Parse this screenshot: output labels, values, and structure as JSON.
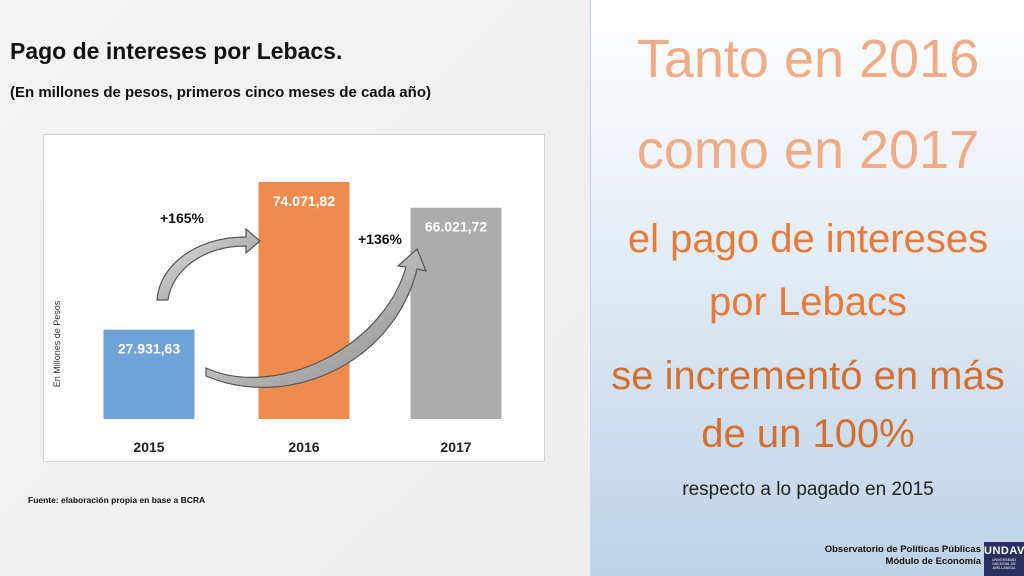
{
  "slide": {
    "title": "Pago de intereses por Lebacs.",
    "subtitle": "(En millones de pesos, primeros cinco meses de cada año)",
    "source": "Fuente: elaboración propia en base a BCRA"
  },
  "chart_data": {
    "type": "bar",
    "title": "",
    "categories": [
      "2015",
      "2016",
      "2017"
    ],
    "values": [
      27931.63,
      74071.82,
      66021.72
    ],
    "value_labels": [
      "27.931,63",
      "74.071,82",
      "66.021,72"
    ],
    "colors": [
      "#6fa3d8",
      "#ee8c4f",
      "#acacac"
    ],
    "ylabel": "En Millones de Pesos",
    "xlabel": "",
    "ylim": [
      0,
      85000
    ],
    "grid": false,
    "annotations": [
      "+165%",
      "+136%"
    ]
  },
  "message": {
    "line1": "Tanto en 2016",
    "line2": "como en 2017",
    "line3": "el pago de intereses",
    "line4": "por Lebacs",
    "line5": "se incrementó en más",
    "line6": "de un 100%",
    "line7": "respecto a lo pagado en 2015"
  },
  "footer": {
    "org_line1": "Observatorio de Políticas Públicas",
    "org_line2": "Módulo de Economía",
    "logo_text": "UNDAV",
    "logo_sub": "UNIVERSIDAD NACIONAL DE AVELLANEDA"
  }
}
